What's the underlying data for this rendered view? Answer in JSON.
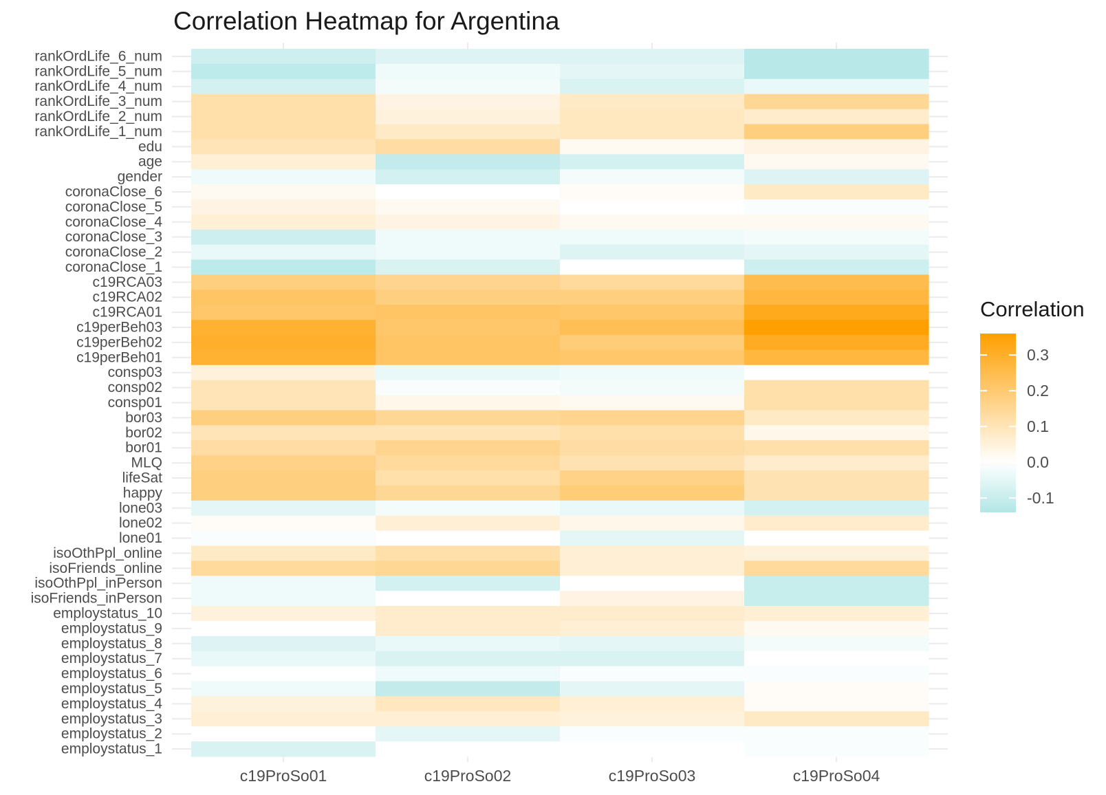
{
  "chart_data": {
    "type": "heatmap",
    "title": "Correlation Heatmap for Argentina",
    "xlabel": "",
    "ylabel": "",
    "x_categories": [
      "c19ProSo01",
      "c19ProSo02",
      "c19ProSo03",
      "c19ProSo04"
    ],
    "y_categories": [
      "rankOrdLife_6_num",
      "rankOrdLife_5_num",
      "rankOrdLife_4_num",
      "rankOrdLife_3_num",
      "rankOrdLife_2_num",
      "rankOrdLife_1_num",
      "edu",
      "age",
      "gender",
      "coronaClose_6",
      "coronaClose_5",
      "coronaClose_4",
      "coronaClose_3",
      "coronaClose_2",
      "coronaClose_1",
      "c19RCA03",
      "c19RCA02",
      "c19RCA01",
      "c19perBeh03",
      "c19perBeh02",
      "c19perBeh01",
      "consp03",
      "consp02",
      "consp01",
      "bor03",
      "bor02",
      "bor01",
      "MLQ",
      "lifeSat",
      "happy",
      "lone03",
      "lone02",
      "lone01",
      "isoOthPpl_online",
      "isoFriends_online",
      "isoOthPpl_inPerson",
      "isoFriends_inPerson",
      "employstatus_10",
      "employstatus_9",
      "employstatus_8",
      "employstatus_7",
      "employstatus_6",
      "employstatus_5",
      "employstatus_4",
      "employstatus_3",
      "employstatus_2",
      "employstatus_1"
    ],
    "values": [
      [
        -0.09,
        -0.06,
        -0.06,
        -0.13
      ],
      [
        -0.12,
        -0.03,
        -0.05,
        -0.13
      ],
      [
        -0.08,
        -0.02,
        -0.07,
        -0.04
      ],
      [
        0.12,
        0.04,
        0.08,
        0.15
      ],
      [
        0.12,
        0.05,
        0.09,
        0.07
      ],
      [
        0.12,
        0.08,
        0.09,
        0.18
      ],
      [
        0.1,
        0.13,
        0.02,
        0.04
      ],
      [
        0.06,
        -0.11,
        -0.08,
        0.02
      ],
      [
        -0.03,
        -0.08,
        -0.02,
        -0.06
      ],
      [
        0.02,
        0.0,
        0.01,
        0.08
      ],
      [
        0.04,
        0.02,
        0.0,
        -0.01
      ],
      [
        0.06,
        0.04,
        0.02,
        0.02
      ],
      [
        -0.09,
        -0.03,
        -0.03,
        -0.02
      ],
      [
        -0.04,
        -0.03,
        -0.06,
        -0.05
      ],
      [
        -0.12,
        -0.07,
        0.0,
        -0.09
      ],
      [
        0.18,
        0.16,
        0.14,
        0.25
      ],
      [
        0.22,
        0.18,
        0.18,
        0.27
      ],
      [
        0.21,
        0.22,
        0.21,
        0.32
      ],
      [
        0.29,
        0.21,
        0.24,
        0.36
      ],
      [
        0.3,
        0.22,
        0.19,
        0.31
      ],
      [
        0.29,
        0.22,
        0.21,
        0.27
      ],
      [
        0.05,
        -0.04,
        -0.03,
        0.0
      ],
      [
        0.1,
        -0.01,
        -0.02,
        0.12
      ],
      [
        0.1,
        0.03,
        0.02,
        0.12
      ],
      [
        0.18,
        0.15,
        0.16,
        0.08
      ],
      [
        0.1,
        0.1,
        0.12,
        0.03
      ],
      [
        0.13,
        0.16,
        0.13,
        0.12
      ],
      [
        0.17,
        0.14,
        0.11,
        0.07
      ],
      [
        0.18,
        0.12,
        0.17,
        0.11
      ],
      [
        0.18,
        0.15,
        0.19,
        0.11
      ],
      [
        -0.05,
        -0.02,
        -0.04,
        -0.08
      ],
      [
        0.01,
        0.06,
        0.03,
        0.07
      ],
      [
        -0.01,
        0.0,
        -0.05,
        0.0
      ],
      [
        0.08,
        0.12,
        0.06,
        0.05
      ],
      [
        0.14,
        0.15,
        0.06,
        0.14
      ],
      [
        -0.03,
        -0.08,
        0.0,
        -0.1
      ],
      [
        -0.03,
        0.0,
        0.04,
        -0.1
      ],
      [
        0.05,
        0.07,
        0.07,
        0.06
      ],
      [
        0.0,
        0.07,
        0.06,
        0.02
      ],
      [
        -0.06,
        -0.04,
        -0.05,
        -0.02
      ],
      [
        -0.04,
        -0.07,
        -0.07,
        0.0
      ],
      [
        0.0,
        -0.03,
        -0.01,
        -0.01
      ],
      [
        -0.03,
        -0.11,
        -0.05,
        0.01
      ],
      [
        0.05,
        0.09,
        0.06,
        0.01
      ],
      [
        0.06,
        0.06,
        0.05,
        0.08
      ],
      [
        0.0,
        -0.05,
        -0.01,
        -0.01
      ],
      [
        -0.07,
        0.0,
        0.0,
        -0.01
      ]
    ],
    "color_scale": {
      "low": "#b2e6e6",
      "mid": "#ffffff",
      "high": "#ff9f00",
      "midpoint": 0.0,
      "min": -0.14,
      "max": 0.36
    },
    "legend": {
      "title": "Correlation",
      "position": "right",
      "ticks": [
        "0.3",
        "0.2",
        "0.1",
        "0.0",
        "-0.1"
      ]
    },
    "grid": true
  }
}
